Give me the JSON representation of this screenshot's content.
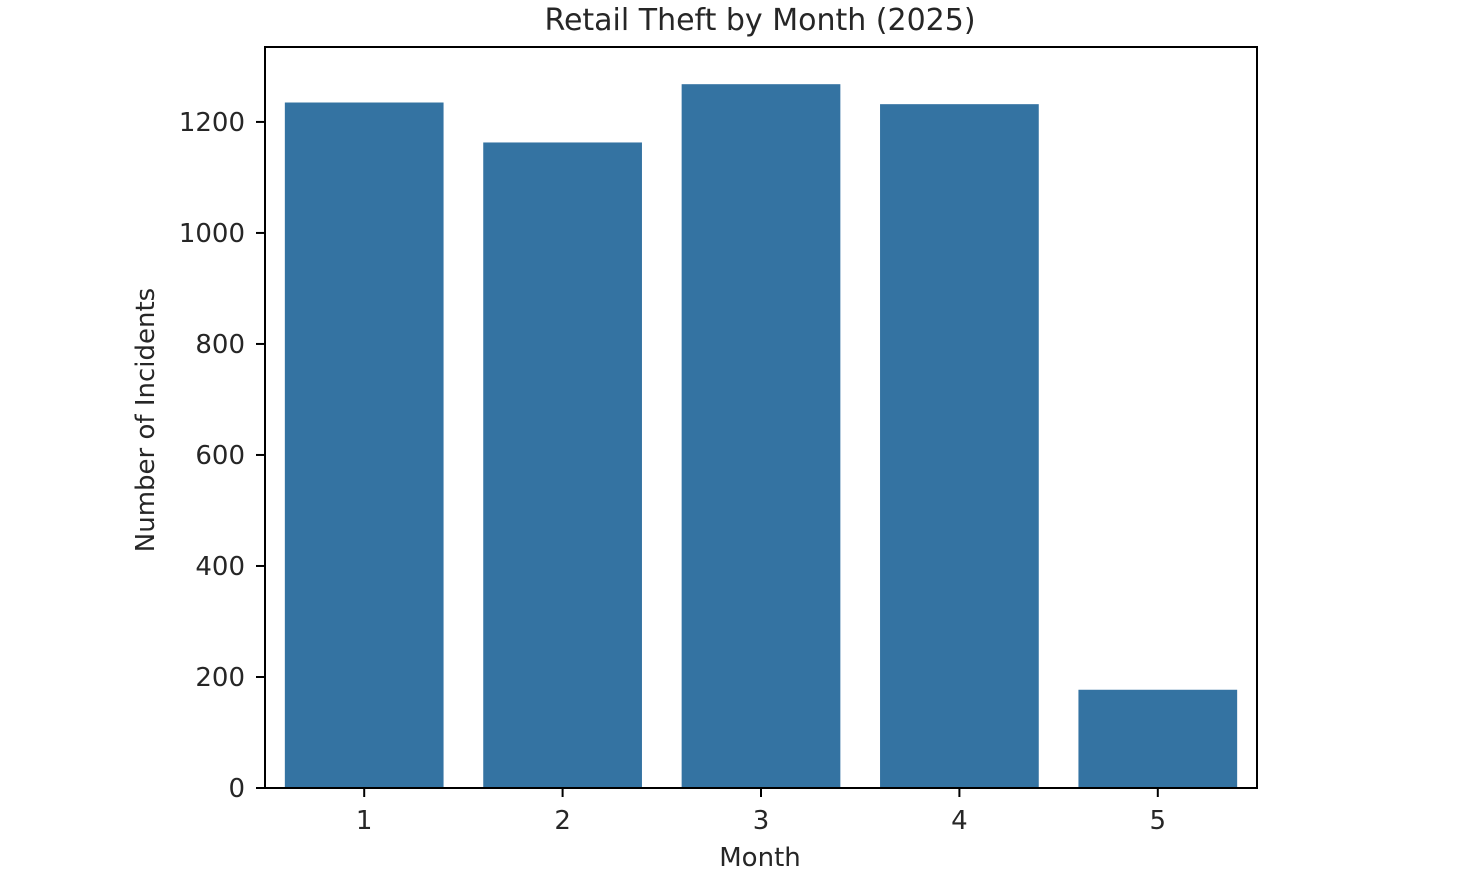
{
  "chart_data": {
    "type": "bar",
    "title": "Retail Theft by Month (2025)",
    "xlabel": "Month",
    "ylabel": "Number of Incidents",
    "categories": [
      "1",
      "2",
      "3",
      "4",
      "5"
    ],
    "values": [
      1235,
      1163,
      1268,
      1232,
      177
    ],
    "ylim": [
      0,
      1335
    ],
    "yticks": [
      0,
      200,
      400,
      600,
      800,
      1000,
      1200
    ],
    "ytick_labels": [
      "0",
      "200",
      "400",
      "600",
      "800",
      "1000",
      "1200"
    ],
    "grid": false,
    "legend": "none",
    "bar_color": "#3473a2"
  }
}
